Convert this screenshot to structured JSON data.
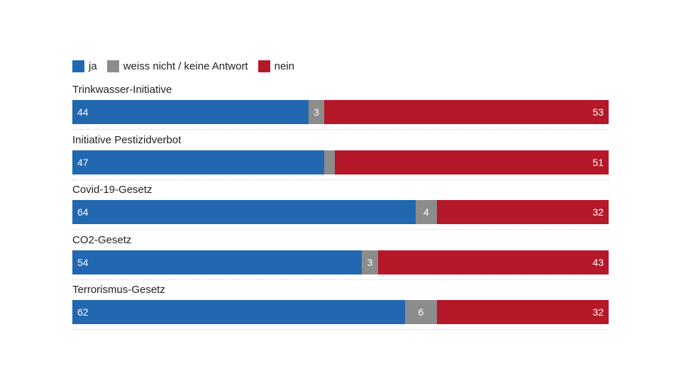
{
  "colors": {
    "ja": "#2168b0",
    "unknown": "#8c8c8c",
    "nein": "#b51829"
  },
  "legend": {
    "ja": "ja",
    "unknown": "weiss nicht / keine Antwort",
    "nein": "nein"
  },
  "chart_data": {
    "type": "bar",
    "orientation": "horizontal",
    "stacked": true,
    "normalized_to": 100,
    "categories": [
      "Trinkwasser-Initiative",
      "Initiative Pestizidverbot",
      "Covid-19-Gesetz",
      "CO2-Gesetz",
      "Terrorismus-Gesetz"
    ],
    "series": [
      {
        "name": "ja",
        "values": [
          44,
          47,
          64,
          54,
          62
        ]
      },
      {
        "name": "weiss nicht / keine Antwort",
        "values": [
          3,
          2,
          4,
          3,
          6
        ]
      },
      {
        "name": "nein",
        "values": [
          53,
          51,
          32,
          43,
          32
        ]
      }
    ],
    "data_labels": [
      [
        "44",
        "3",
        "53"
      ],
      [
        "47",
        "",
        "51"
      ],
      [
        "64",
        "4",
        "32"
      ],
      [
        "54",
        "3",
        "43"
      ],
      [
        "62",
        "6",
        "32"
      ]
    ],
    "legend_position": "top-left",
    "grid": false
  }
}
